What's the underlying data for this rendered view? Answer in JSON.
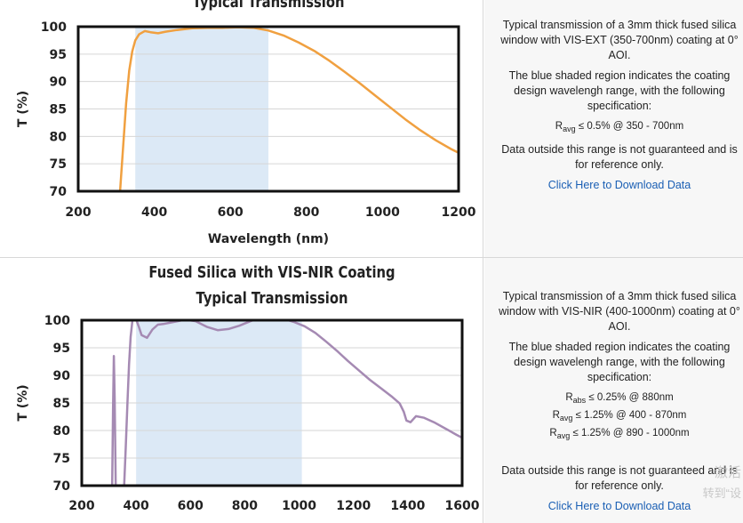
{
  "charts": [
    {
      "title_lines": [
        "Typical Transmission"
      ],
      "xlabel": "Wavelength (nm)",
      "ylabel": "T (%)",
      "description": {
        "p1": "Typical transmission of a 3mm thick fused silica window with VIS-EXT (350-700nm) coating at 0° AOI.",
        "p2": "The blue shaded region indicates the coating design wavelengh range, with the following specification:",
        "specs": [
          {
            "sym": "R",
            "sub": "avg",
            "text": "≤ 0.5% @ 350 - 700nm"
          }
        ],
        "p3": "Data outside this range is not guaranteed and is for reference only.",
        "link": "Click Here to Download Data"
      }
    },
    {
      "title_lines": [
        "Fused Silica with VIS-NIR Coating",
        "Typical Transmission"
      ],
      "xlabel": "",
      "ylabel": "T (%)",
      "description": {
        "p1": "Typical transmission of a 3mm thick fused silica window with VIS-NIR (400-1000nm) coating at 0° AOI.",
        "p2": "The blue shaded region indicates the coating design wavelengh range, with the following specification:",
        "specs": [
          {
            "sym": "R",
            "sub": "abs",
            "text": "≤ 0.25% @ 880nm"
          },
          {
            "sym": "R",
            "sub": "avg",
            "text": "≤ 1.25% @ 400 - 870nm"
          },
          {
            "sym": "R",
            "sub": "avg",
            "text": "≤ 1.25% @ 890 - 1000nm"
          }
        ],
        "p3": "Data outside this range is not guaranteed and is for reference only.",
        "link": "Click Here to Download Data"
      }
    }
  ],
  "watermark": {
    "line1": "激活",
    "line2": "转到“设"
  },
  "chart_data": [
    {
      "type": "line",
      "title": "Typical Transmission",
      "xlabel": "Wavelength (nm)",
      "ylabel": "T (%)",
      "xlim": [
        200,
        1200
      ],
      "ylim": [
        70,
        100
      ],
      "xticks": [
        200,
        400,
        600,
        800,
        1000,
        1200
      ],
      "yticks": [
        70,
        75,
        80,
        85,
        90,
        95,
        100
      ],
      "shaded_range": [
        350,
        700
      ],
      "line_color": "#f0a040",
      "shade_color": "#dce9f6",
      "series": [
        {
          "x": [
            310,
            318,
            326,
            334,
            342,
            350,
            360,
            375,
            390,
            410,
            430,
            460,
            500,
            540,
            580,
            620,
            660,
            700,
            740,
            780,
            820,
            860,
            900,
            940,
            980,
            1020,
            1060,
            1100,
            1140,
            1180,
            1200
          ],
          "values": [
            70,
            78,
            86,
            92,
            95.5,
            97.5,
            98.6,
            99.2,
            99.0,
            98.8,
            99.1,
            99.4,
            99.7,
            99.8,
            99.8,
            99.9,
            99.8,
            99.3,
            98.4,
            97.1,
            95.6,
            93.8,
            91.8,
            89.7,
            87.5,
            85.3,
            83.1,
            81.1,
            79.3,
            77.7,
            77.0
          ]
        }
      ]
    },
    {
      "type": "line",
      "title": "Fused Silica with VIS-NIR Coating Typical Transmission",
      "xlabel": "",
      "ylabel": "T (%)",
      "xlim": [
        200,
        1600
      ],
      "ylim": [
        70,
        100
      ],
      "xticks": [
        200,
        400,
        600,
        800,
        1000,
        1200,
        1400,
        1600
      ],
      "yticks": [
        70,
        75,
        80,
        85,
        90,
        95,
        100
      ],
      "shaded_range": [
        400,
        1010
      ],
      "line_color": "#a58ab3",
      "shade_color": "#dce9f6",
      "series": [
        {
          "x": [
            312,
            315,
            318,
            321,
            325,
            356,
            362,
            368,
            374,
            380,
            386,
            392,
            400,
            410,
            420,
            440,
            460,
            480,
            500,
            540,
            580,
            620,
            660,
            700,
            740,
            780,
            820,
            860,
            900,
            940,
            980,
            1020,
            1060,
            1100,
            1140,
            1180,
            1220,
            1260,
            1300,
            1340,
            1370,
            1385,
            1395,
            1410,
            1430,
            1460,
            1500,
            1540,
            1580,
            1600
          ],
          "values": [
            70,
            84,
            93.5,
            86,
            70,
            70,
            77,
            85,
            92,
            97,
            99.8,
            100.4,
            100.2,
            98.8,
            97.3,
            96.8,
            98.3,
            99.2,
            99.3,
            99.7,
            100.1,
            99.8,
            98.8,
            98.2,
            98.4,
            99.0,
            99.8,
            100.5,
            100.6,
            100.3,
            99.7,
            98.9,
            97.7,
            96.1,
            94.4,
            92.6,
            90.9,
            89.2,
            87.7,
            86.2,
            84.9,
            83.4,
            81.8,
            81.5,
            82.6,
            82.3,
            81.4,
            80.3,
            79.2,
            78.7
          ]
        }
      ]
    }
  ]
}
